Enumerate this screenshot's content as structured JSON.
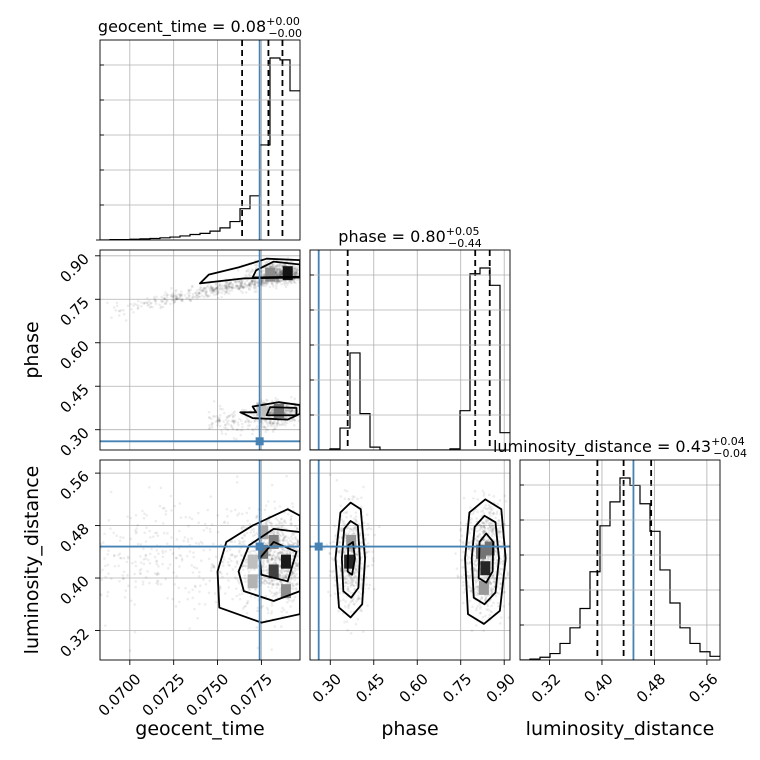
{
  "chart_data": {
    "type": "corner",
    "parameters": [
      {
        "name": "geocent_time",
        "label": "geocent_time",
        "range": [
          0.0683,
          0.0797
        ],
        "ticks": [
          0.07,
          0.0725,
          0.075,
          0.0775
        ],
        "tick_labels": [
          "0.0700",
          "0.0725",
          "0.0750",
          "0.0775"
        ],
        "truth": 0.0774,
        "quantiles": [
          0.0764,
          0.0779,
          0.0787
        ],
        "title_main": "geocent_time = 0.08",
        "title_sup": "+0.00",
        "title_sub": "−0.00",
        "hist": {
          "edges_start": 0.0683,
          "bin_width": 0.00057,
          "counts": [
            0,
            1,
            1,
            2,
            3,
            4,
            6,
            8,
            11,
            15,
            18,
            24,
            33,
            50,
            85,
            120,
            258,
            494,
            489,
            405
          ]
        }
      },
      {
        "name": "phase",
        "label": "phase",
        "range": [
          0.23,
          0.92
        ],
        "ticks": [
          0.3,
          0.45,
          0.6,
          0.75,
          0.9
        ],
        "tick_labels": [
          "0.30",
          "0.45",
          "0.60",
          "0.75",
          "0.90"
        ],
        "truth": 0.26,
        "quantiles": [
          0.36,
          0.8,
          0.85
        ],
        "title_main": "phase = 0.80",
        "title_sup": "+0.05",
        "title_sub": "−0.44",
        "hist": {
          "edges_start": 0.23,
          "bin_width": 0.0345,
          "counts": [
            0,
            0,
            2,
            38,
            168,
            63,
            5,
            0,
            0,
            0,
            0,
            0,
            0,
            0,
            2,
            68,
            305,
            315,
            285,
            30
          ]
        }
      },
      {
        "name": "luminosity_distance",
        "label": "luminosity_distance",
        "range": [
          0.275,
          0.58
        ],
        "ticks": [
          0.32,
          0.4,
          0.48,
          0.56
        ],
        "tick_labels": [
          "0.32",
          "0.40",
          "0.48",
          "0.56"
        ],
        "truth": 0.448,
        "quantiles": [
          0.393,
          0.433,
          0.475
        ],
        "title_main": "luminosity_distance = 0.43",
        "title_sup": "+0.04",
        "title_sub": "−0.04",
        "hist": {
          "edges_start": 0.275,
          "bin_width": 0.01525,
          "counts": [
            0,
            1,
            3,
            7,
            18,
            35,
            56,
            96,
            146,
            172,
            198,
            190,
            170,
            140,
            98,
            62,
            35,
            18,
            9,
            4
          ]
        }
      }
    ],
    "grid": true,
    "truth_color": "#4682b4",
    "quantile_style": "dashed"
  }
}
